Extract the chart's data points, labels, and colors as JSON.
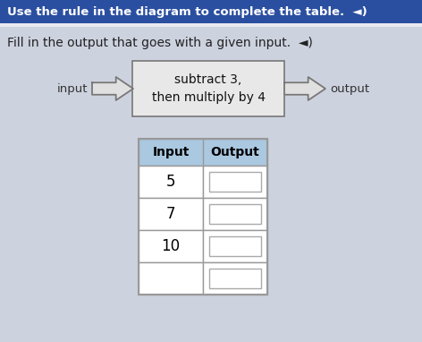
{
  "title_bar_text": "Use the rule in the diagram to complete the table.  ◄)",
  "title_bar_color": "#2b4fa0",
  "title_bar_text_color": "#ffffff",
  "subtitle_text": "Fill in the output that goes with a given input.  ◄)",
  "subtitle_fontsize": 10,
  "subtitle_color": "#222222",
  "background_color": "#cdd2df",
  "box_text_line1": "subtract 3,",
  "box_text_line2": "then multiply by 4",
  "box_facecolor": "#e8e8e8",
  "box_edgecolor": "#777777",
  "arrow_color": "#777777",
  "input_label": "input",
  "output_label": "output",
  "table_header": [
    "Input",
    "Output"
  ],
  "table_header_bg": "#aac8e0",
  "table_inputs": [
    "5",
    "7",
    "10",
    ""
  ],
  "table_cell_bg": "#ffffff",
  "table_border_color": "#999999",
  "figsize": [
    4.72,
    3.82
  ],
  "dpi": 100
}
